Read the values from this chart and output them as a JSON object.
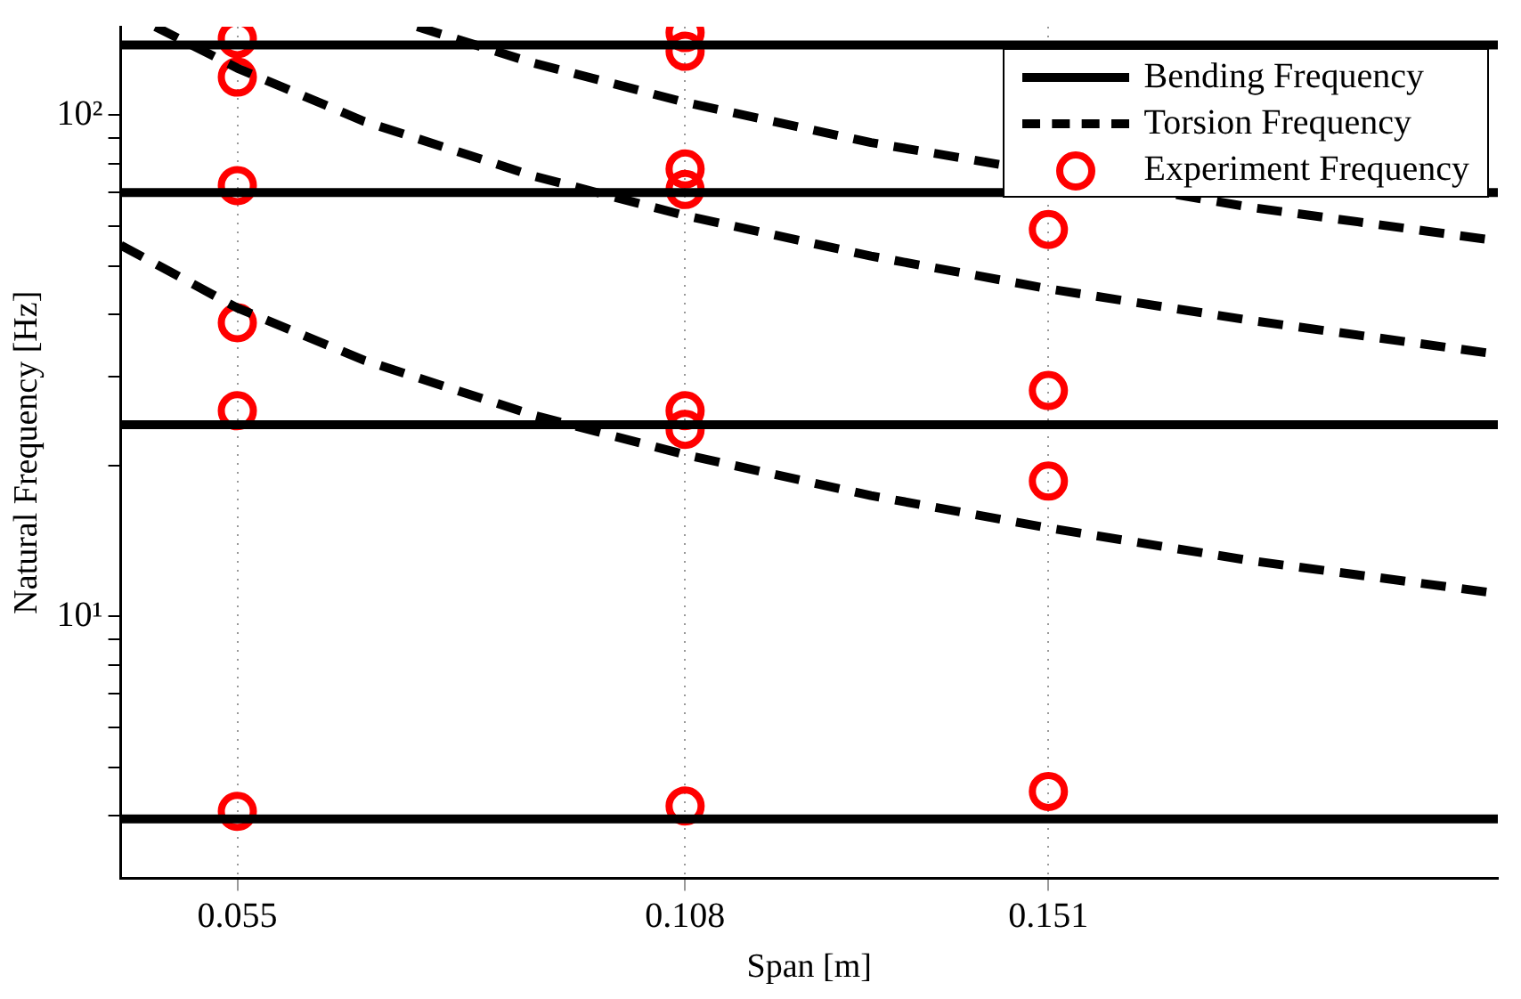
{
  "chart_data": {
    "type": "line",
    "xlabel": "Span [m]",
    "ylabel": "Natural Frequency [Hz]",
    "log": "y",
    "grid": "x",
    "legend": "top right",
    "xlim": [
      0.0412,
      0.2042
    ],
    "xticks": [
      0.055,
      0.108,
      0.151
    ],
    "ylim": [
      3,
      150
    ],
    "yticks": [
      {
        "value": 4,
        "label": null
      },
      {
        "value": 5,
        "label": null
      },
      {
        "value": 6,
        "label": null
      },
      {
        "value": 7,
        "label": null
      },
      {
        "value": 8,
        "label": null
      },
      {
        "value": 9,
        "label": null
      },
      {
        "value": 10,
        "label": "10¹"
      },
      {
        "value": 20,
        "label": null
      },
      {
        "value": 30,
        "label": null
      },
      {
        "value": 40,
        "label": null
      },
      {
        "value": 50,
        "label": null
      },
      {
        "value": 60,
        "label": null
      },
      {
        "value": 70,
        "label": null
      },
      {
        "value": 80,
        "label": null
      },
      {
        "value": 90,
        "label": null
      },
      {
        "value": 100,
        "label": "10²"
      }
    ],
    "series": [
      {
        "name": "Bending Frequency",
        "type": "line",
        "line_style": "solid",
        "color": "#000000",
        "x": [
          0.0412,
          0.2042
        ],
        "values": [
          138,
          138
        ]
      },
      {
        "type": "line",
        "line_style": "solid",
        "color": "#000000",
        "x": [
          0.0412,
          0.2042
        ],
        "values": [
          70,
          70
        ]
      },
      {
        "type": "line",
        "line_style": "solid",
        "color": "#000000",
        "x": [
          0.0412,
          0.2042
        ],
        "values": [
          24.1,
          24.1
        ]
      },
      {
        "type": "line",
        "line_style": "solid",
        "color": "#000000",
        "x": [
          0.0412,
          0.2042
        ],
        "values": [
          3.94,
          3.94
        ]
      },
      {
        "name": "Torsion Frequency",
        "type": "line",
        "line_style": "dashed",
        "color": "#000000",
        "x": [
          0.0412,
          0.055,
          0.07,
          0.09,
          0.108,
          0.13,
          0.151,
          0.175,
          0.2042
        ],
        "values": [
          55.0,
          41.2,
          32.4,
          25.2,
          21.0,
          17.4,
          15.0,
          12.9,
          11.1
        ]
      },
      {
        "type": "line",
        "line_style": "dashed",
        "color": "#000000",
        "x": [
          0.0453,
          0.055,
          0.07,
          0.09,
          0.108,
          0.13,
          0.151,
          0.175,
          0.2042
        ],
        "values": [
          150,
          124,
          97.1,
          75.6,
          63.0,
          52.3,
          45.0,
          38.9,
          33.3
        ]
      },
      {
        "type": "line",
        "line_style": "dashed",
        "color": "#000000",
        "x": [
          0.0763,
          0.09,
          0.108,
          0.13,
          0.151,
          0.175,
          0.2042
        ],
        "values": [
          150,
          127,
          106,
          88.1,
          null,
          65.4,
          56.1
        ]
      },
      {
        "name": "Experiment Frequency",
        "type": "scatter",
        "marker": "circle",
        "color": "#ff0000",
        "x": [
          0.055,
          0.055,
          0.055,
          0.055,
          0.055,
          0.055,
          0.108,
          0.108,
          0.108,
          0.108,
          0.108,
          0.108,
          0.108,
          0.151,
          0.151,
          0.151,
          0.151
        ],
        "values": [
          142,
          119,
          72.3,
          38.5,
          25.7,
          4.08,
          146,
          134,
          78,
          71,
          25.7,
          23.6,
          4.18,
          59.1,
          28.2,
          18.6,
          4.47
        ]
      }
    ]
  }
}
